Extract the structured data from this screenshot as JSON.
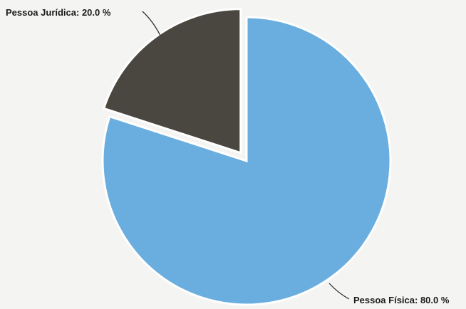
{
  "chart_data": {
    "type": "pie",
    "slices": [
      {
        "label": "Pessoa Jurídica",
        "value": 20.0,
        "display": "Pessoa Jurídica: 20.0 %",
        "color": "#4a4640",
        "exploded": true
      },
      {
        "label": "Pessoa Física",
        "value": 80.0,
        "display": "Pessoa Física: 80.0 %",
        "color": "#6aaee0",
        "exploded": false
      }
    ]
  }
}
